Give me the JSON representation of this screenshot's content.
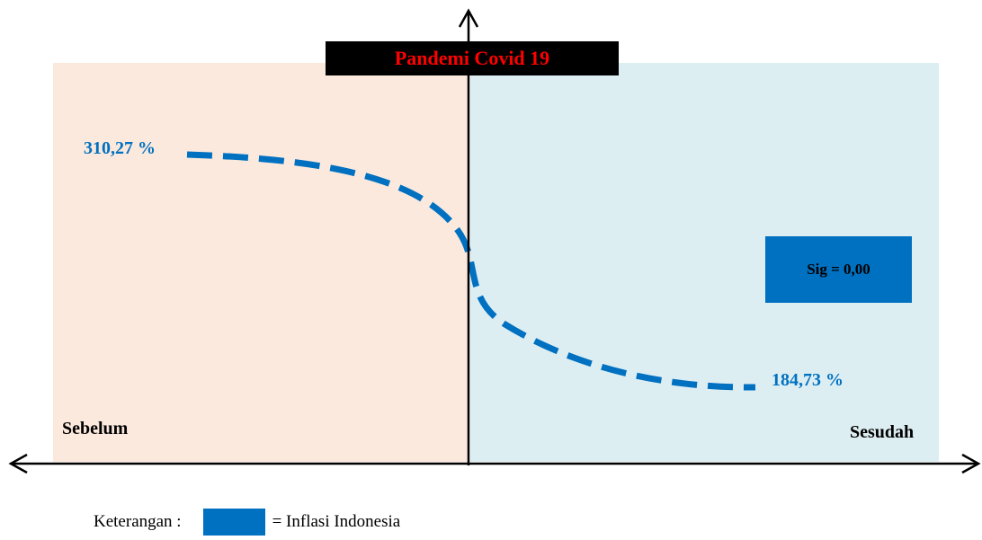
{
  "colors": {
    "before_bg": "#fbe9dd",
    "after_bg": "#ddeef3",
    "series": "#0070c0",
    "title_text": "#ff0000",
    "title_bg": "#000000"
  },
  "title": "Pandemi Covid 19",
  "periods": {
    "before": "Sebelum",
    "after": "Sesudah"
  },
  "values": {
    "before": "310,27 %",
    "after": "184,73 %"
  },
  "sig": "Sig = 0,00",
  "legend": {
    "label": "Keterangan :",
    "series_label": "= Inflasi Indonesia"
  }
}
